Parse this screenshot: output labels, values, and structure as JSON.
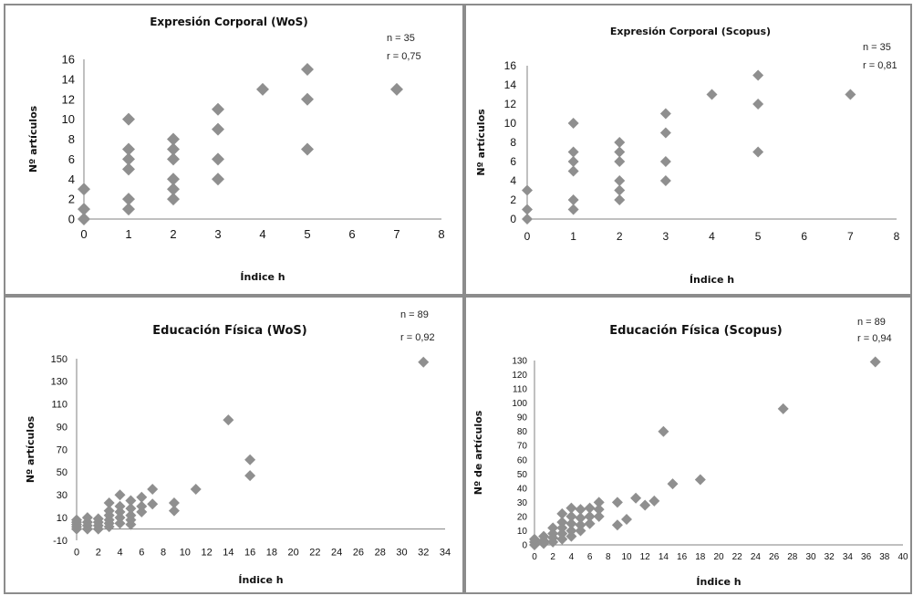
{
  "chart_data": [
    {
      "type": "scatter",
      "title": "Expresión Corporal (WoS)",
      "n_label": "n = 35",
      "r_label": "r = 0,75",
      "xlabel": "Índice h",
      "ylabel": "Nº artículos",
      "xlim": [
        0,
        8
      ],
      "ylim": [
        0,
        16
      ],
      "x_ticks": [
        "0",
        "1",
        "2",
        "3",
        "4",
        "5",
        "6",
        "7",
        "8"
      ],
      "y_ticks": [
        "0",
        "2",
        "4",
        "6",
        "8",
        "10",
        "12",
        "14",
        "16"
      ],
      "points": [
        [
          0,
          0
        ],
        [
          0,
          1
        ],
        [
          0,
          3
        ],
        [
          1,
          1
        ],
        [
          1,
          2
        ],
        [
          1,
          5
        ],
        [
          1,
          6
        ],
        [
          1,
          7
        ],
        [
          1,
          10
        ],
        [
          2,
          2
        ],
        [
          2,
          3
        ],
        [
          2,
          4
        ],
        [
          2,
          6
        ],
        [
          2,
          7
        ],
        [
          2,
          8
        ],
        [
          3,
          4
        ],
        [
          3,
          6
        ],
        [
          3,
          9
        ],
        [
          3,
          11
        ],
        [
          4,
          13
        ],
        [
          5,
          7
        ],
        [
          5,
          12
        ],
        [
          5,
          15
        ],
        [
          7,
          13
        ]
      ],
      "color": "#8f8f8f"
    },
    {
      "type": "scatter",
      "title": "Expresión Corporal (Scopus)",
      "n_label": "n = 35",
      "r_label": "r = 0,81",
      "xlabel": "Índice h",
      "ylabel": "Nº artículos",
      "xlim": [
        0,
        8
      ],
      "ylim": [
        0,
        16
      ],
      "x_ticks": [
        "0",
        "1",
        "2",
        "3",
        "4",
        "5",
        "6",
        "7",
        "8"
      ],
      "y_ticks": [
        "0",
        "2",
        "4",
        "6",
        "8",
        "10",
        "12",
        "14",
        "16"
      ],
      "points": [
        [
          0,
          0
        ],
        [
          0,
          1
        ],
        [
          0,
          3
        ],
        [
          1,
          1
        ],
        [
          1,
          2
        ],
        [
          1,
          5
        ],
        [
          1,
          6
        ],
        [
          1,
          7
        ],
        [
          1,
          10
        ],
        [
          2,
          2
        ],
        [
          2,
          3
        ],
        [
          2,
          4
        ],
        [
          2,
          6
        ],
        [
          2,
          7
        ],
        [
          2,
          8
        ],
        [
          3,
          4
        ],
        [
          3,
          6
        ],
        [
          3,
          9
        ],
        [
          3,
          11
        ],
        [
          4,
          13
        ],
        [
          5,
          7
        ],
        [
          5,
          12
        ],
        [
          5,
          15
        ],
        [
          7,
          13
        ]
      ],
      "color": "#8f8f8f"
    },
    {
      "type": "scatter",
      "title": "Educación Física (WoS)",
      "n_label": "n = 89",
      "r_label": "r = 0,92",
      "xlabel": "Índice h",
      "ylabel": "Nº artículos",
      "xlim": [
        0,
        34
      ],
      "ylim": [
        -10,
        150
      ],
      "x_ticks": [
        "0",
        "2",
        "4",
        "6",
        "8",
        "10",
        "12",
        "14",
        "16",
        "18",
        "20",
        "22",
        "24",
        "26",
        "28",
        "30",
        "32",
        "34"
      ],
      "y_ticks": [
        "-10",
        "10",
        "30",
        "50",
        "70",
        "90",
        "110",
        "130",
        "150"
      ],
      "points": [
        [
          0,
          0
        ],
        [
          0,
          2
        ],
        [
          0,
          4
        ],
        [
          0,
          6
        ],
        [
          0,
          8
        ],
        [
          1,
          0
        ],
        [
          1,
          3
        ],
        [
          1,
          6
        ],
        [
          1,
          10
        ],
        [
          2,
          0
        ],
        [
          2,
          3
        ],
        [
          2,
          6
        ],
        [
          2,
          9
        ],
        [
          3,
          2
        ],
        [
          3,
          5
        ],
        [
          3,
          8
        ],
        [
          3,
          12
        ],
        [
          3,
          16
        ],
        [
          3,
          23
        ],
        [
          4,
          5
        ],
        [
          4,
          10
        ],
        [
          4,
          15
        ],
        [
          4,
          20
        ],
        [
          4,
          30
        ],
        [
          5,
          4
        ],
        [
          5,
          8
        ],
        [
          5,
          12
        ],
        [
          5,
          18
        ],
        [
          5,
          25
        ],
        [
          6,
          15
        ],
        [
          6,
          20
        ],
        [
          6,
          28
        ],
        [
          7,
          22
        ],
        [
          7,
          35
        ],
        [
          9,
          16
        ],
        [
          9,
          23
        ],
        [
          11,
          35
        ],
        [
          14,
          96
        ],
        [
          16,
          47
        ],
        [
          16,
          61
        ],
        [
          32,
          147
        ]
      ],
      "color": "#8f8f8f"
    },
    {
      "type": "scatter",
      "title": "Educación Física (Scopus)",
      "n_label": "n = 89",
      "r_label": "r = 0,94",
      "xlabel": "Índice h",
      "ylabel": "Nº de artículos",
      "xlim": [
        0,
        40
      ],
      "ylim": [
        0,
        130
      ],
      "x_ticks": [
        "0",
        "2",
        "4",
        "6",
        "8",
        "10",
        "12",
        "14",
        "16",
        "18",
        "20",
        "22",
        "24",
        "26",
        "28",
        "30",
        "32",
        "34",
        "36",
        "38",
        "40"
      ],
      "y_ticks": [
        "0",
        "10",
        "20",
        "30",
        "40",
        "50",
        "60",
        "70",
        "80",
        "90",
        "100",
        "110",
        "120",
        "130"
      ],
      "points": [
        [
          0,
          0
        ],
        [
          0,
          2
        ],
        [
          0,
          4
        ],
        [
          1,
          1
        ],
        [
          1,
          3
        ],
        [
          1,
          6
        ],
        [
          2,
          2
        ],
        [
          2,
          5
        ],
        [
          2,
          8
        ],
        [
          2,
          12
        ],
        [
          3,
          4
        ],
        [
          3,
          8
        ],
        [
          3,
          12
        ],
        [
          3,
          16
        ],
        [
          3,
          22
        ],
        [
          4,
          6
        ],
        [
          4,
          10
        ],
        [
          4,
          15
        ],
        [
          4,
          20
        ],
        [
          4,
          26
        ],
        [
          5,
          10
        ],
        [
          5,
          14
        ],
        [
          5,
          19
        ],
        [
          5,
          25
        ],
        [
          6,
          15
        ],
        [
          6,
          20
        ],
        [
          6,
          26
        ],
        [
          7,
          20
        ],
        [
          7,
          25
        ],
        [
          7,
          30
        ],
        [
          9,
          14
        ],
        [
          9,
          30
        ],
        [
          10,
          18
        ],
        [
          11,
          33
        ],
        [
          12,
          28
        ],
        [
          13,
          31
        ],
        [
          14,
          80
        ],
        [
          15,
          43
        ],
        [
          18,
          46
        ],
        [
          27,
          96
        ],
        [
          37,
          129
        ]
      ],
      "color": "#8f8f8f"
    }
  ]
}
